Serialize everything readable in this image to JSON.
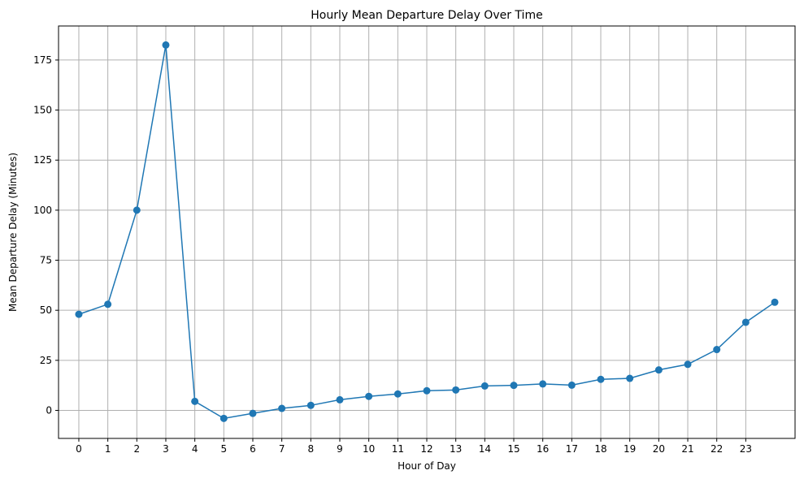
{
  "chart_data": {
    "type": "line",
    "title": "Hourly Mean Departure Delay Over Time",
    "xlabel": "Hour of Day",
    "ylabel": "Mean Departure Delay (Minutes)",
    "x_ticks": [
      0,
      1,
      2,
      3,
      4,
      5,
      6,
      7,
      8,
      9,
      10,
      11,
      12,
      13,
      14,
      15,
      16,
      17,
      18,
      19,
      20,
      21,
      22,
      23
    ],
    "y_ticks": [
      0,
      25,
      50,
      75,
      100,
      125,
      150,
      175
    ],
    "xlim": [
      -0.7,
      24.7
    ],
    "ylim": [
      -14,
      192
    ],
    "grid": true,
    "line_color": "#1f77b4",
    "series": [
      {
        "x": [
          0,
          1,
          2,
          3,
          4,
          5,
          6,
          7,
          8,
          9,
          10,
          11,
          12,
          13,
          14,
          15,
          16,
          17,
          18,
          19,
          20,
          21,
          22,
          23,
          24
        ],
        "values": [
          48,
          53,
          100,
          182.5,
          4.5,
          -4,
          -1.5,
          1,
          2.5,
          5.3,
          7,
          8.2,
          9.8,
          10.2,
          12.2,
          12.5,
          13.2,
          12.6,
          15.5,
          16,
          20.2,
          23,
          30.4,
          44,
          54
        ]
      }
    ]
  }
}
